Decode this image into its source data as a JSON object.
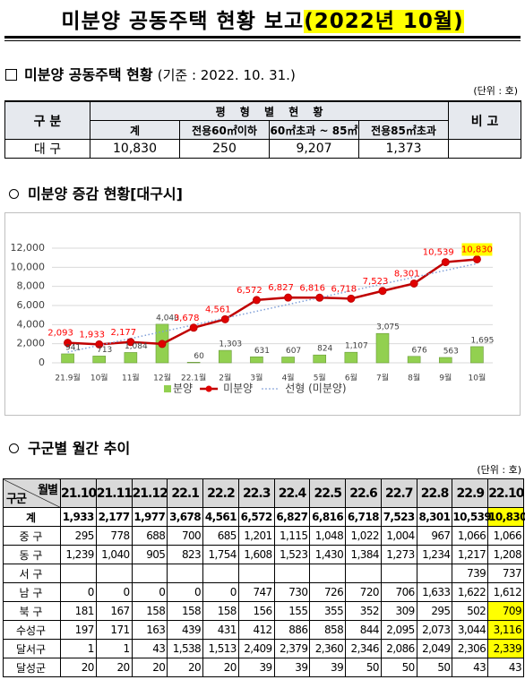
{
  "header": {
    "title": "미분양 공동주택 현황 보고",
    "period": "(2022년 10월)"
  },
  "section1": {
    "heading": "미분양 공동주택 현황",
    "basis": "(기준 : 2022. 10. 31.)",
    "unit": "(단위 : 호)"
  },
  "table1": {
    "header": [
      "구 분",
      "평 형 별 현 황",
      "비 고"
    ],
    "subheader": [
      "계",
      "전용60㎡이하",
      "60㎡초과 ~ 85㎡",
      "전용85㎡초과"
    ],
    "rows": [
      [
        "대 구",
        "10,830",
        "250",
        "9,207",
        "1,373"
      ]
    ]
  },
  "section2": {
    "heading": "미분양 증감 현황[대구시]"
  },
  "chart_data": {
    "type": "combo",
    "categories": [
      "21.9월",
      "10월",
      "11월",
      "12월",
      "22.1월",
      "2월",
      "3월",
      "4월",
      "5월",
      "6월",
      "7월",
      "8월",
      "9월",
      "10월"
    ],
    "series": [
      {
        "name": "분양",
        "type": "bar",
        "color": "#92d050",
        "values": [
          941,
          713,
          1084,
          4040,
          60,
          1303,
          631,
          607,
          824,
          1107,
          3075,
          676,
          563,
          1695
        ],
        "value_labels": [
          "941",
          "713",
          "1,084",
          "4,040",
          "60",
          "1,303",
          "631",
          "607",
          "824",
          "1,107",
          "3,075",
          "676",
          "563",
          "1,695"
        ]
      },
      {
        "name": "미분양",
        "type": "line",
        "color": "#c00000",
        "values": [
          2093,
          1933,
          2177,
          1977,
          3678,
          4561,
          6572,
          6827,
          6816,
          6718,
          7523,
          8301,
          10539,
          10830
        ],
        "value_labels": [
          "2,093",
          "1,933",
          "2,177",
          null,
          "3,678",
          "4,561",
          "6,572",
          "6,827",
          "6,816",
          "6,718",
          "7,523",
          "8,301",
          "10,539",
          "10,830"
        ]
      }
    ],
    "trendline": {
      "name": "선형 (미분양)",
      "color": "#7f9fd8"
    },
    "ylim": [
      0,
      12000
    ],
    "yticks": [
      0,
      {
        "value": 2000,
        "label": "2,000"
      },
      {
        "value": 4000,
        "label": "4,000"
      },
      {
        "value": 6000,
        "label": "6,000"
      },
      {
        "value": 8000,
        "label": "8,000"
      },
      {
        "value": 10000,
        "label": "10,000"
      },
      {
        "value": 12000,
        "label": "12,000"
      }
    ],
    "legend": "bottom"
  },
  "section3": {
    "heading": "구군별 월간 추이",
    "unit": "(단위 : 호)"
  },
  "table2": {
    "corner_top": "월별",
    "corner_bottom": "구군",
    "columns": [
      "21.10",
      "21.11",
      "21.12",
      "22.1",
      "22.2",
      "22.3",
      "22.4",
      "22.5",
      "22.6",
      "22.7",
      "22.8",
      "22.9",
      "22.10"
    ],
    "rows": [
      {
        "name": "계",
        "cells": [
          "1,933",
          "2,177",
          "1,977",
          "3,678",
          "4,561",
          "6,572",
          "6,827",
          "6,816",
          "6,718",
          "7,523",
          "8,301",
          "10,539",
          "10,830"
        ]
      },
      {
        "name": "중 구",
        "cells": [
          "295",
          "778",
          "688",
          "700",
          "685",
          "1,201",
          "1,115",
          "1,048",
          "1,022",
          "1,004",
          "967",
          "1,066",
          "1,066"
        ]
      },
      {
        "name": "동 구",
        "cells": [
          "1,239",
          "1,040",
          "905",
          "823",
          "1,754",
          "1,608",
          "1,523",
          "1,430",
          "1,384",
          "1,273",
          "1,234",
          "1,217",
          "1,208"
        ]
      },
      {
        "name": "서 구",
        "cells": [
          null,
          null,
          null,
          null,
          null,
          null,
          null,
          null,
          null,
          null,
          null,
          "739",
          "737"
        ]
      },
      {
        "name": "남 구",
        "cells": [
          "0",
          "0",
          "0",
          "0",
          "0",
          "747",
          "730",
          "726",
          "720",
          "706",
          "1,633",
          "1,622",
          "1,612"
        ]
      },
      {
        "name": "북 구",
        "cells": [
          "181",
          "167",
          "158",
          "158",
          "158",
          "156",
          "155",
          "355",
          "352",
          "309",
          "295",
          "502",
          "709"
        ]
      },
      {
        "name": "수성구",
        "cells": [
          "197",
          "171",
          "163",
          "439",
          "431",
          "412",
          "886",
          "858",
          "844",
          "2,095",
          "2,073",
          "3,044",
          "3,116"
        ]
      },
      {
        "name": "달서구",
        "cells": [
          "1",
          "1",
          "43",
          "1,538",
          "1,513",
          "2,409",
          "2,379",
          "2,360",
          "2,346",
          "2,086",
          "2,049",
          "2,306",
          "2,339"
        ]
      },
      {
        "name": "달성군",
        "cells": [
          "20",
          "20",
          "20",
          "20",
          "20",
          "39",
          "39",
          "39",
          "50",
          "50",
          "50",
          "43",
          "43"
        ]
      }
    ]
  }
}
